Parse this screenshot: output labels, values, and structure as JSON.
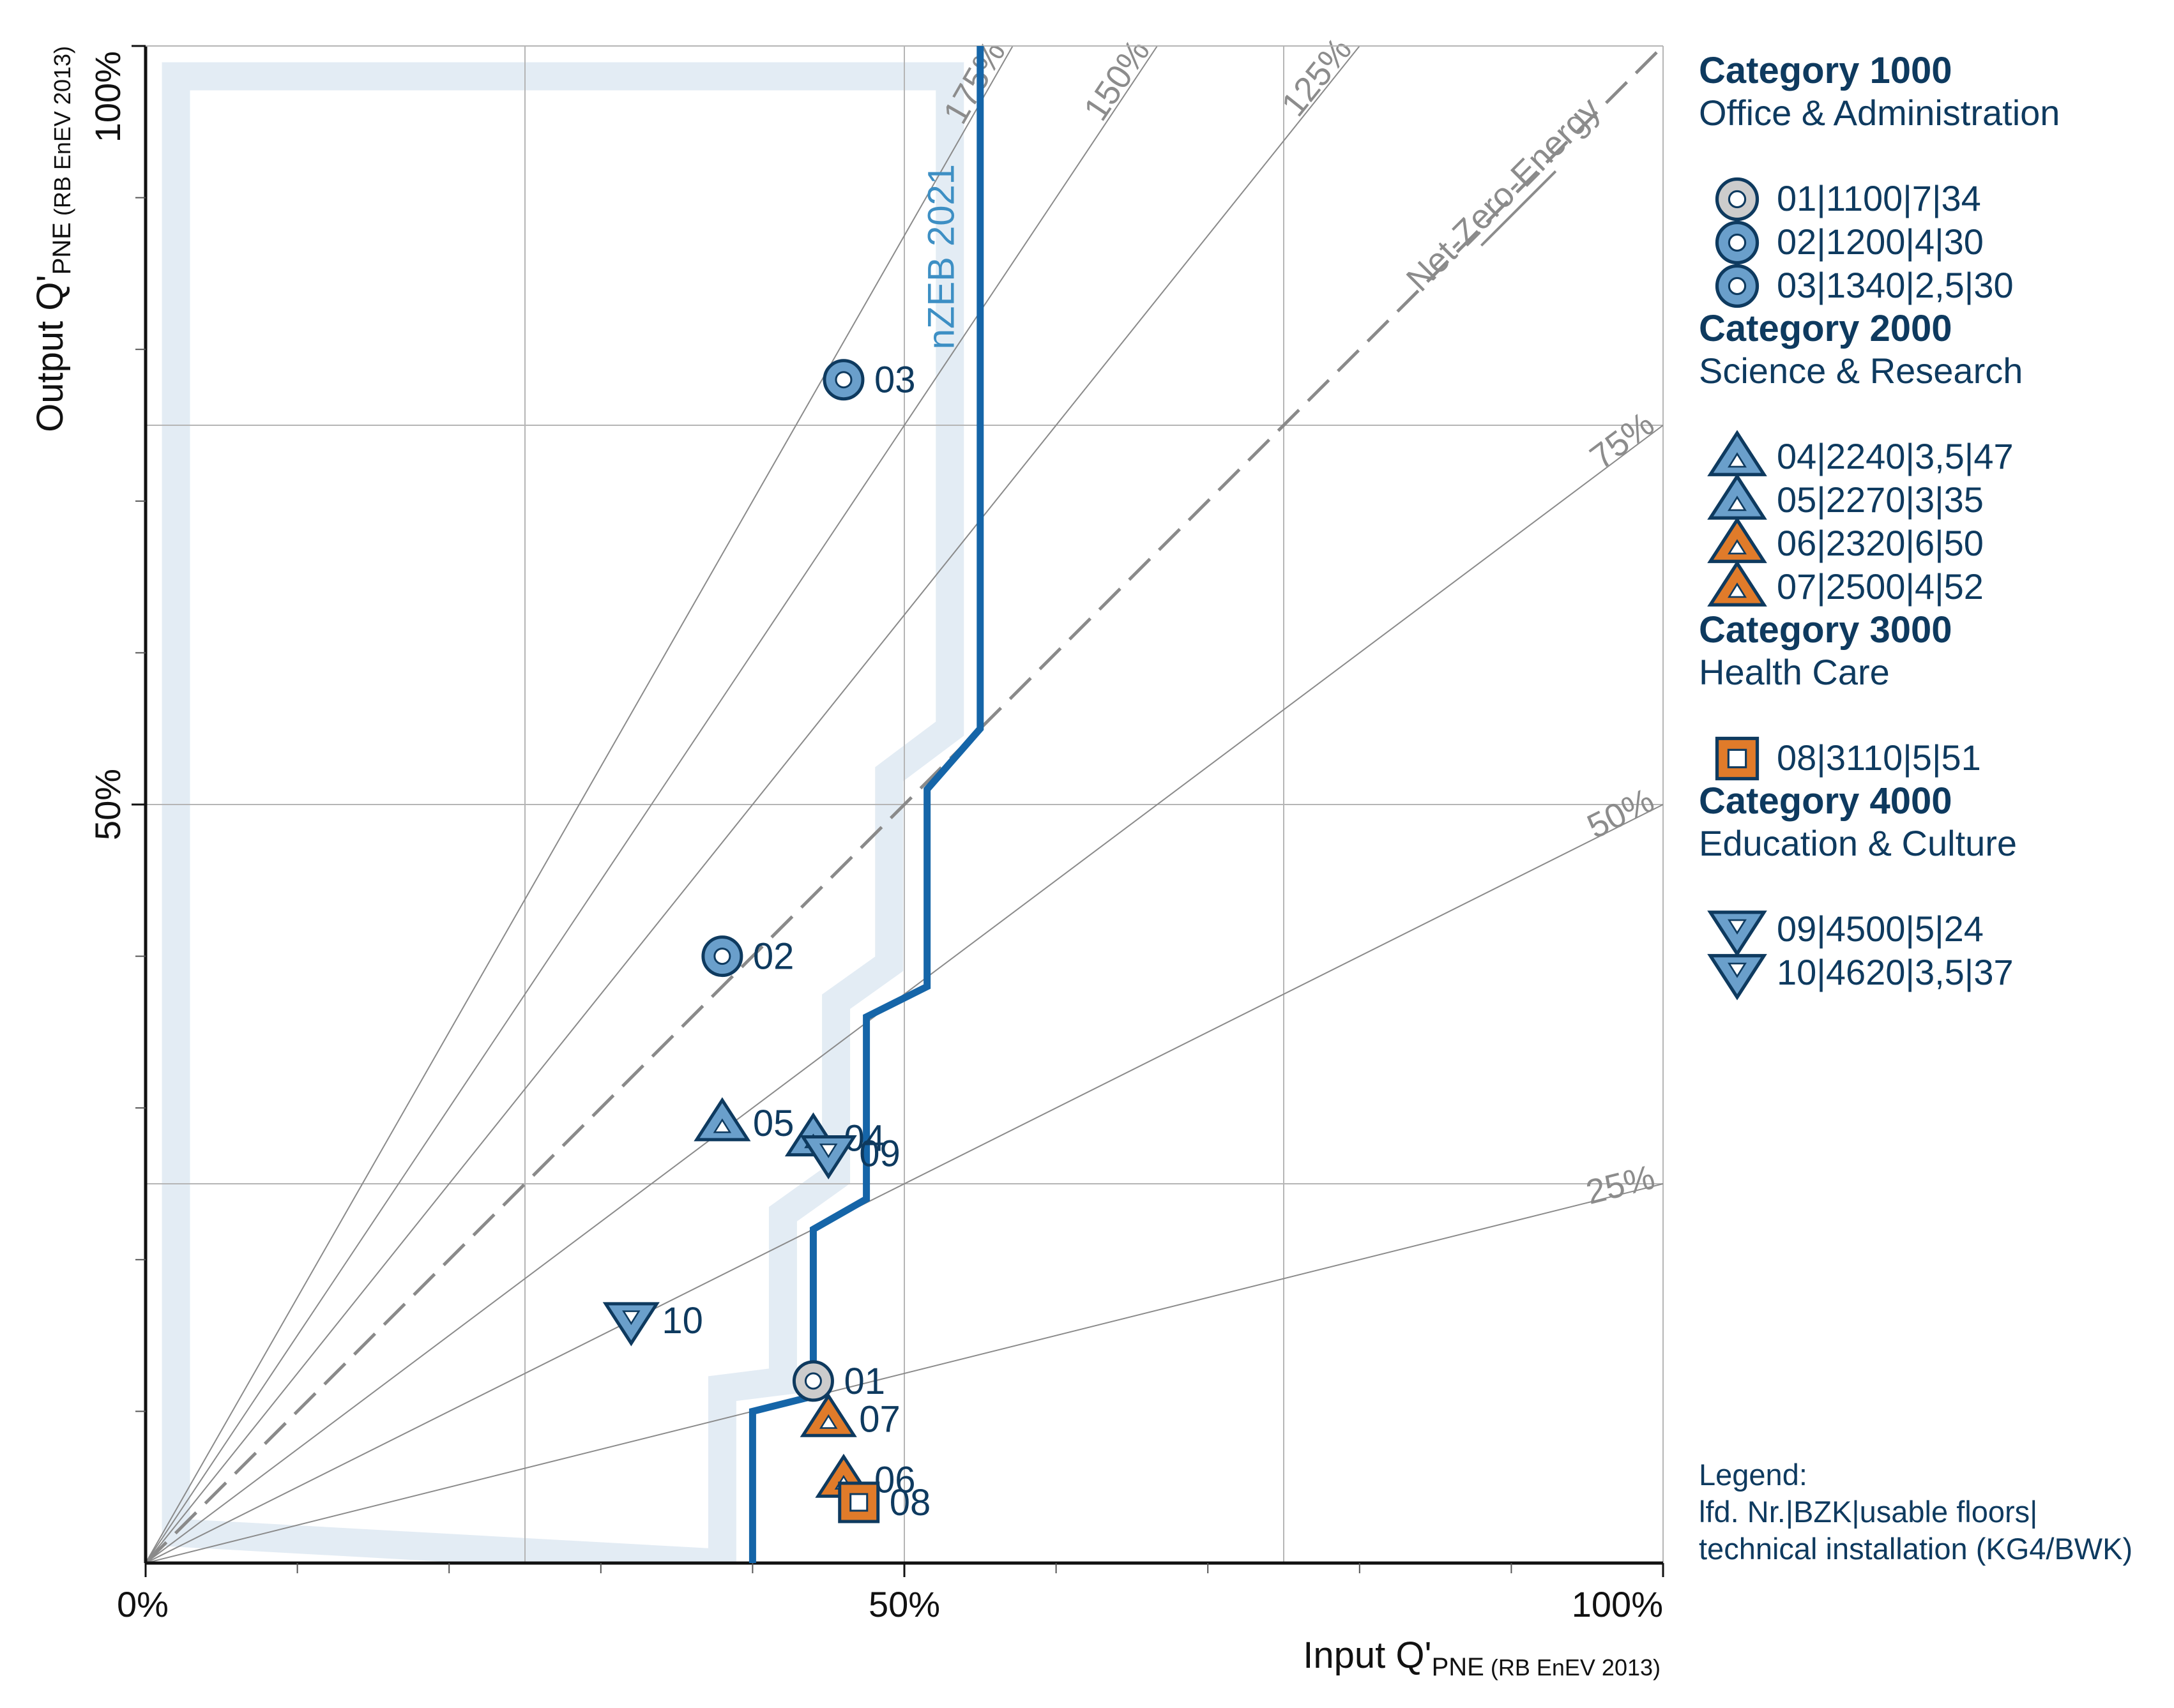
{
  "chart_data": {
    "type": "scatter",
    "xlim": [
      0,
      100
    ],
    "ylim": [
      0,
      100
    ],
    "x_ticks": [
      "0%",
      "50%",
      "100%"
    ],
    "y_ticks": [
      "50%",
      "100%"
    ],
    "xlabel": {
      "main": "Input Q'",
      "sub": "PNE",
      "suffix": "(RB EnEV 2013)"
    },
    "ylabel": {
      "main": "Output Q'",
      "sub": "PNE",
      "suffix": "(RB EnEV 2013)"
    },
    "ratio_lines": [
      {
        "label": "175%",
        "slope": 1.75
      },
      {
        "label": "150%",
        "slope": 1.5
      },
      {
        "label": "125%",
        "slope": 1.25
      },
      {
        "label": "75%",
        "slope": 0.75
      },
      {
        "label": "50%",
        "slope": 0.5
      },
      {
        "label": "25%",
        "slope": 0.25
      }
    ],
    "net_zero_label": "Net-Zero-Energy",
    "nzeb_label": "nZEB 2021",
    "nzeb_line": [
      [
        40,
        0
      ],
      [
        40,
        10
      ],
      [
        44,
        11
      ],
      [
        44,
        22
      ],
      [
        47.5,
        24
      ],
      [
        47.5,
        36
      ],
      [
        51.5,
        38
      ],
      [
        51.5,
        51
      ],
      [
        55,
        55
      ],
      [
        55,
        100
      ]
    ],
    "nzeb_band": [
      [
        38,
        0
      ],
      [
        38,
        11.5
      ],
      [
        42,
        12
      ],
      [
        42,
        23
      ],
      [
        45.5,
        25.5
      ],
      [
        45.5,
        37
      ],
      [
        49,
        39.5
      ],
      [
        49,
        52
      ],
      [
        53,
        55
      ],
      [
        53,
        98
      ],
      [
        2,
        98
      ],
      [
        2,
        2
      ]
    ],
    "series": [
      {
        "name": "Category 1000",
        "points": [
          {
            "id": "01",
            "x": 44,
            "y": 12,
            "shape": "circle",
            "color": "#cccccc",
            "label": "01"
          },
          {
            "id": "02",
            "x": 38,
            "y": 40,
            "shape": "circle",
            "color": "#6a9fcb",
            "label": "02"
          },
          {
            "id": "03",
            "x": 46,
            "y": 78,
            "shape": "circle",
            "color": "#6a9fcb",
            "label": "03"
          }
        ]
      },
      {
        "name": "Category 2000",
        "points": [
          {
            "id": "04",
            "x": 44,
            "y": 28,
            "shape": "tri-up",
            "color": "#6a9fcb",
            "label": "04"
          },
          {
            "id": "05",
            "x": 38,
            "y": 29,
            "shape": "tri-up",
            "color": "#6a9fcb",
            "label": "05"
          },
          {
            "id": "06",
            "x": 46,
            "y": 5.5,
            "shape": "tri-up",
            "color": "#e07b2a",
            "label": "06"
          },
          {
            "id": "07",
            "x": 45,
            "y": 9.5,
            "shape": "tri-up",
            "color": "#e07b2a",
            "label": "07"
          }
        ]
      },
      {
        "name": "Category 3000",
        "points": [
          {
            "id": "08",
            "x": 47,
            "y": 4,
            "shape": "square",
            "color": "#e07b2a",
            "label": "08"
          }
        ]
      },
      {
        "name": "Category 4000",
        "points": [
          {
            "id": "09",
            "x": 45,
            "y": 27,
            "shape": "tri-down",
            "color": "#6a9fcb",
            "label": "09"
          },
          {
            "id": "10",
            "x": 32,
            "y": 16,
            "shape": "tri-down",
            "color": "#6a9fcb",
            "label": "10"
          }
        ]
      }
    ]
  },
  "legend": {
    "categories": [
      {
        "title": "Category 1000",
        "subtitle": "Office & Administration",
        "items": [
          {
            "shape": "circle",
            "color": "#cccccc",
            "text": "01|1100|7|34"
          },
          {
            "shape": "circle",
            "color": "#6a9fcb",
            "text": "02|1200|4|30"
          },
          {
            "shape": "circle",
            "color": "#6a9fcb",
            "text": "03|1340|2,5|30"
          }
        ]
      },
      {
        "title": "Category 2000",
        "subtitle": "Science & Research",
        "items": [
          {
            "shape": "tri-up",
            "color": "#6a9fcb",
            "text": "04|2240|3,5|47"
          },
          {
            "shape": "tri-up",
            "color": "#6a9fcb",
            "text": "05|2270|3|35"
          },
          {
            "shape": "tri-up",
            "color": "#e07b2a",
            "text": "06|2320|6|50"
          },
          {
            "shape": "tri-up",
            "color": "#e07b2a",
            "text": "07|2500|4|52"
          }
        ]
      },
      {
        "title": "Category 3000",
        "subtitle": "Health Care",
        "items": [
          {
            "shape": "square",
            "color": "#e07b2a",
            "text": "08|3110|5|51"
          }
        ]
      },
      {
        "title": "Category 4000",
        "subtitle": "Education & Culture",
        "items": [
          {
            "shape": "tri-down",
            "color": "#6a9fcb",
            "text": "09|4500|5|24"
          },
          {
            "shape": "tri-down",
            "color": "#6a9fcb",
            "text": "10|4620|3,5|37"
          }
        ]
      }
    ],
    "note": [
      "Legend:",
      "lfd. Nr.|BZK|usable floors|",
      "technical installation (KG4/BWK)"
    ]
  },
  "colors": {
    "dark_blue": "#0e3a5f",
    "nzeb_blue": "#1565a8",
    "band": "#e3ecf4",
    "grid": "#b5b5b5",
    "ratio": "#8a8a8a",
    "label_gray": "#8c8c8c",
    "nzeb_text": "#3d8fc4"
  }
}
